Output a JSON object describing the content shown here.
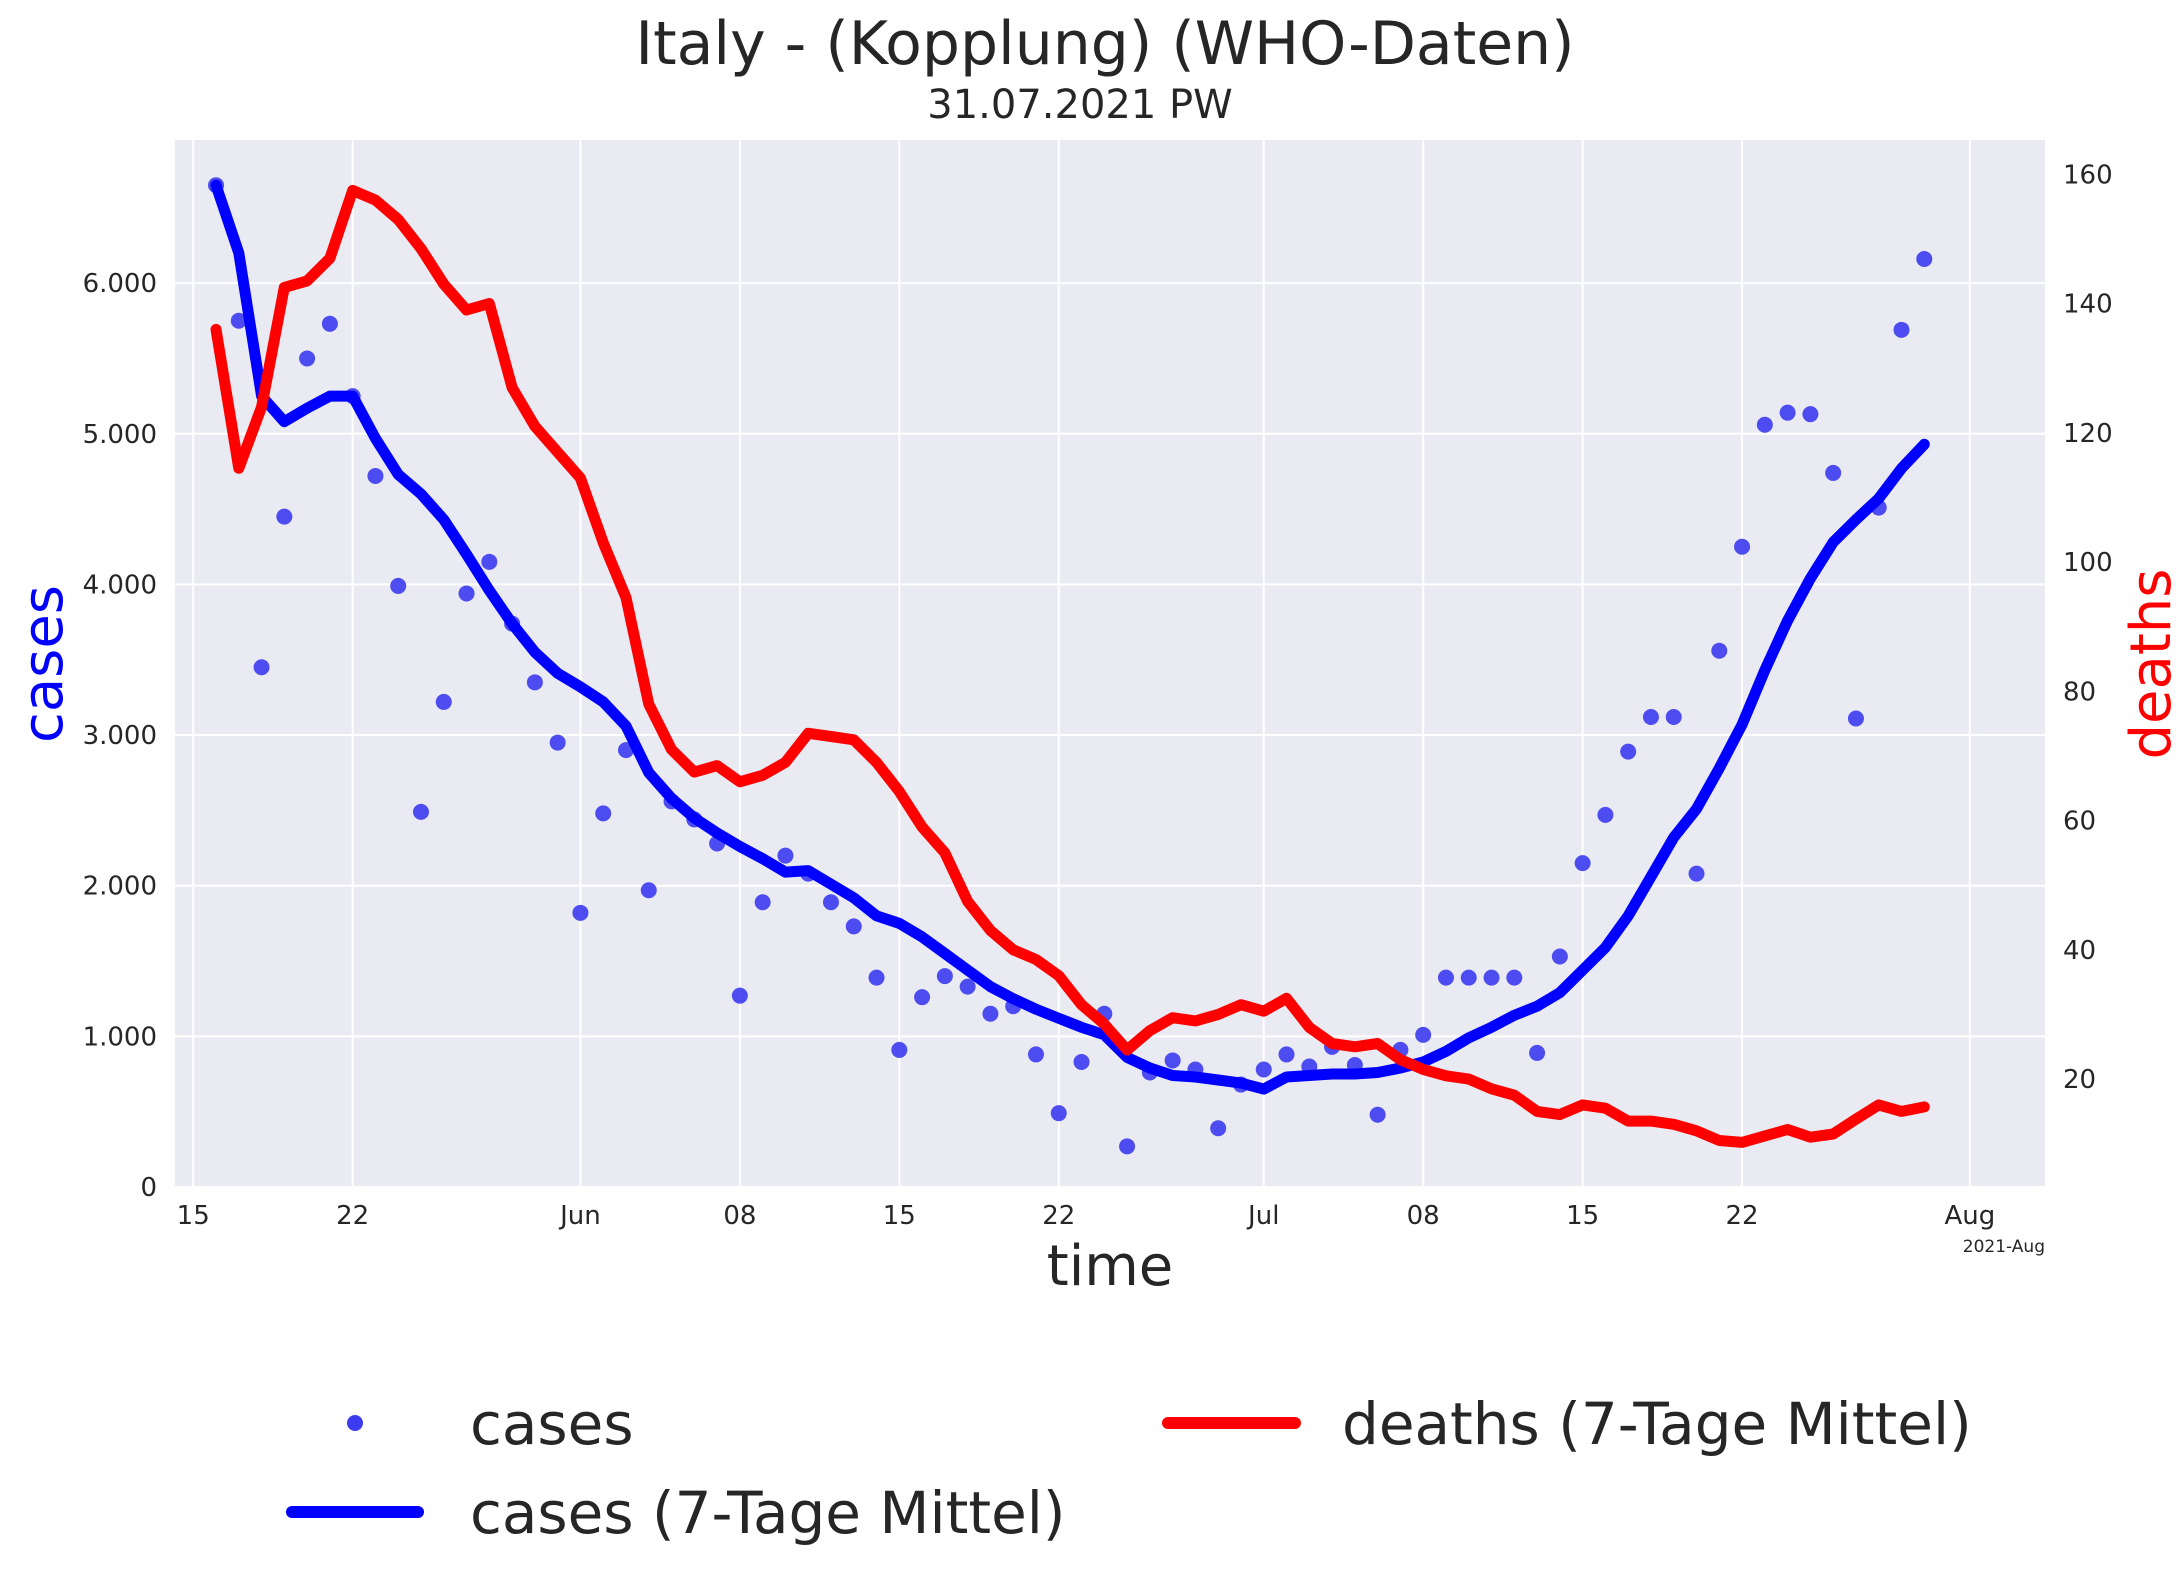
{
  "chart_data": {
    "type": "line",
    "title": "Italy - (Kopplung)  (WHO-Daten)",
    "subtitle": "31.07.2021 PW",
    "xlabel": "time",
    "ylabel_left": "cases",
    "ylabel_right": "deaths",
    "start_date": "2021-05-16",
    "x_ticks": [
      {
        "day": 15,
        "label": "15"
      },
      {
        "day": 22,
        "label": "22"
      },
      {
        "day": 32,
        "label": "Jun"
      },
      {
        "day": 39,
        "label": "08"
      },
      {
        "day": 46,
        "label": "15"
      },
      {
        "day": 53,
        "label": "22"
      },
      {
        "day": 62,
        "label": "Jul"
      },
      {
        "day": 69,
        "label": "08"
      },
      {
        "day": 76,
        "label": "15"
      },
      {
        "day": 83,
        "label": "22"
      },
      {
        "day": 93,
        "label": "Aug"
      }
    ],
    "x_offset_label": "2021-Aug",
    "y_left": {
      "min": 0,
      "max": 6950,
      "ticks": [
        0,
        1000,
        2000,
        3000,
        4000,
        5000,
        6000
      ],
      "tick_labels": [
        "0",
        "1.000",
        "2.000",
        "3.000",
        "4.000",
        "5.000",
        "6.000"
      ]
    },
    "y_right": {
      "min": 3.3,
      "max": 165.3,
      "ticks": [
        20,
        40,
        60,
        80,
        100,
        120,
        140,
        160
      ],
      "tick_labels": [
        "20",
        "40",
        "60",
        "80",
        "100",
        "120",
        "140",
        "160"
      ]
    },
    "x_range": [
      14.2,
      96.3
    ],
    "colors": {
      "cases_points": "#3b3bf0",
      "cases_avg": "#0000ff",
      "deaths_avg": "#ff0000",
      "plot_bg": "#eaeaf2",
      "grid": "#ffffff",
      "cases_label": "#0000ff",
      "deaths_label": "#ff0000"
    },
    "series": [
      {
        "name": "cases",
        "axis": "left",
        "style": "points",
        "start_day": 16,
        "values": [
          6650,
          5750,
          3450,
          4450,
          5500,
          5730,
          5250,
          4720,
          3990,
          2490,
          3220,
          3940,
          4150,
          3740,
          3350,
          2950,
          1820,
          2480,
          2900,
          1970,
          2560,
          2440,
          2280,
          1270,
          1890,
          2200,
          2080,
          1890,
          1730,
          1390,
          910,
          1260,
          1400,
          1330,
          1150,
          1200,
          880,
          490,
          830,
          1150,
          270,
          760,
          840,
          780,
          390,
          680,
          780,
          880,
          800,
          930,
          810,
          480,
          910,
          1010,
          1390,
          1390,
          1390,
          1390,
          890,
          1530,
          2150,
          2470,
          2890,
          3120,
          3120,
          2080,
          3560,
          4250,
          5060,
          5140,
          5130,
          4740,
          3110,
          4510,
          5690,
          6160
        ]
      },
      {
        "name": "cases (7-Tage Mittel)",
        "axis": "left",
        "style": "line",
        "start_day": 16,
        "values": [
          6650,
          6200,
          5250,
          5080,
          5170,
          5250,
          5250,
          4970,
          4730,
          4600,
          4430,
          4200,
          3960,
          3740,
          3550,
          3410,
          3320,
          3220,
          3060,
          2750,
          2580,
          2450,
          2350,
          2260,
          2180,
          2090,
          2100,
          2010,
          1920,
          1800,
          1750,
          1660,
          1550,
          1440,
          1330,
          1250,
          1180,
          1120,
          1060,
          1010,
          860,
          790,
          740,
          730,
          710,
          690,
          650,
          730,
          740,
          750,
          750,
          760,
          790,
          830,
          900,
          990,
          1060,
          1140,
          1200,
          1290,
          1440,
          1590,
          1800,
          2060,
          2320,
          2510,
          2780,
          3070,
          3430,
          3760,
          4040,
          4280,
          4430,
          4570,
          4770,
          4930
        ]
      },
      {
        "name": "deaths (7-Tage Mittel)",
        "axis": "right",
        "style": "line",
        "start_day": 16,
        "values": [
          136,
          114.5,
          124,
          142.5,
          143.5,
          147,
          157.5,
          156,
          153,
          148.5,
          143,
          139,
          140,
          127,
          121,
          117,
          113,
          103,
          94.5,
          78,
          71,
          67.5,
          68.5,
          66,
          67,
          69,
          73.5,
          73,
          72.5,
          69,
          64.5,
          59,
          55,
          47.5,
          43,
          40,
          38.5,
          36,
          31.5,
          28.5,
          24.5,
          27.5,
          29.5,
          29,
          30,
          31.5,
          30.5,
          32.5,
          28,
          25.5,
          25,
          25.5,
          23,
          21.5,
          20.5,
          20,
          18.5,
          17.5,
          15,
          14.5,
          16,
          15.5,
          13.5,
          13.5,
          13,
          12,
          10.5,
          10.2,
          11.2,
          12.2,
          11,
          11.5,
          13.8,
          16,
          15,
          15.7
        ]
      }
    ],
    "legend": {
      "position": "bottom",
      "columns": 2
    }
  }
}
